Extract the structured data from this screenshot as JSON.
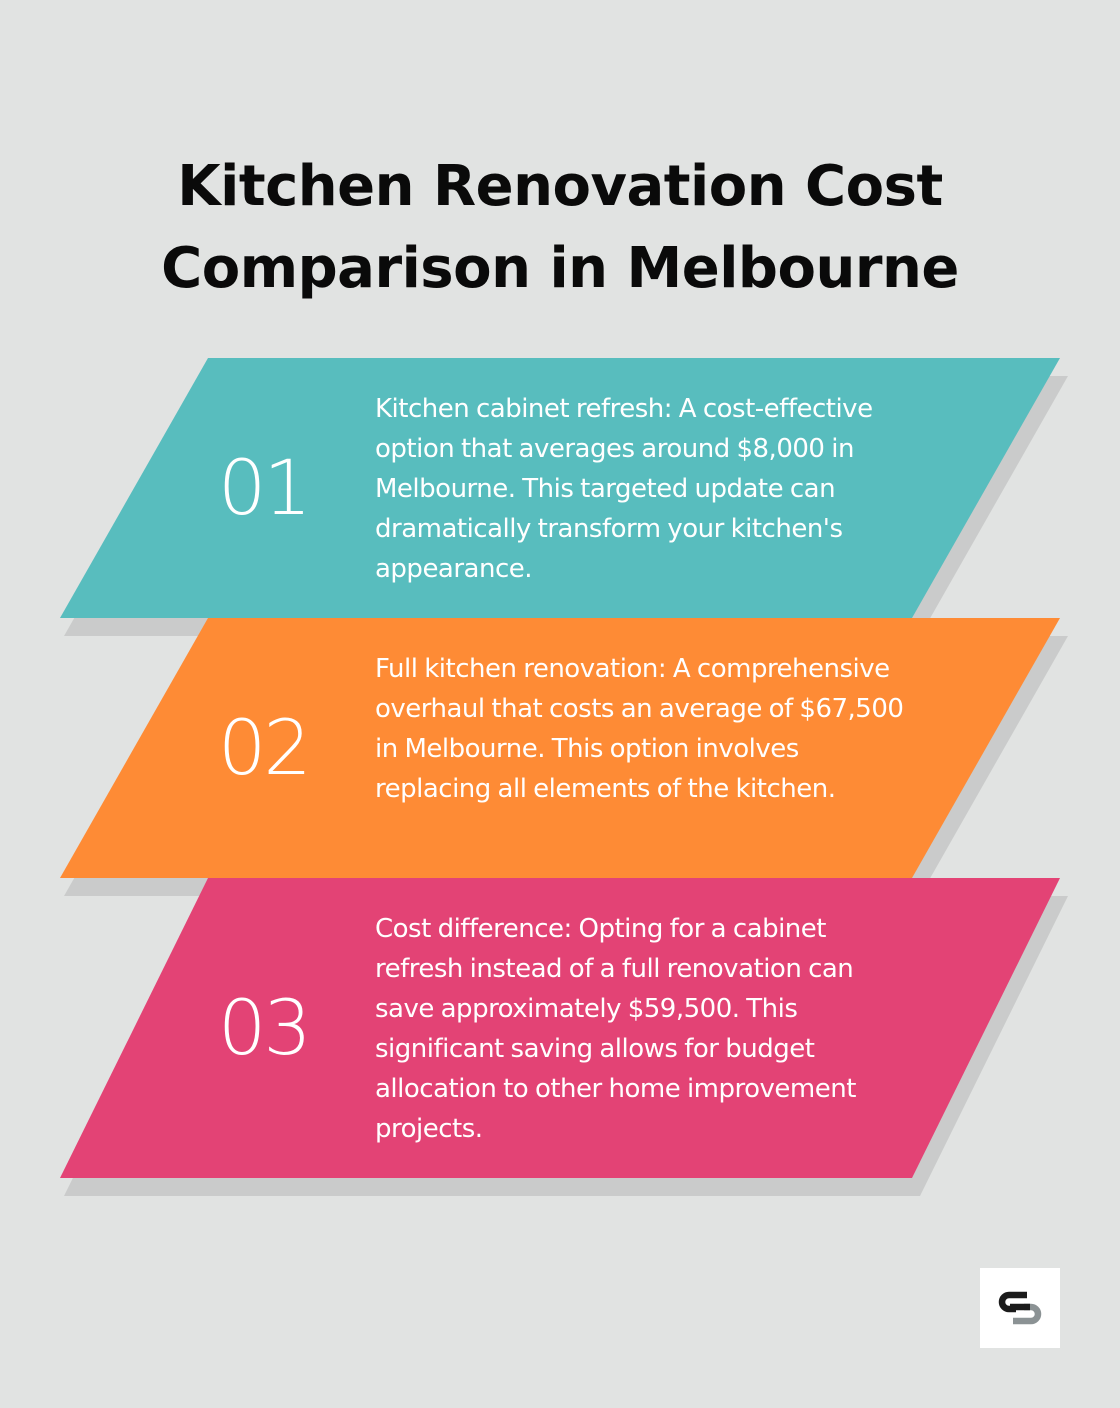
{
  "title": {
    "line1": "Kitchen Renovation Cost",
    "line2": "Comparison in Melbourne"
  },
  "items": [
    {
      "number": "01",
      "color": "#58bdbe",
      "text": "Kitchen cabinet refresh: A cost-effective option that averages around $8,000 in Melbourne. This targeted update can dramatically transform your kitchen's appearance."
    },
    {
      "number": "02",
      "color": "#fe8b35",
      "text": "Full kitchen renovation: A comprehensive overhaul that costs an average of $67,500 in Melbourne. This option involves replacing all elements of the kitchen."
    },
    {
      "number": "03",
      "color": "#e34375",
      "text": "Cost difference: Opting for a cabinet refresh instead of a full renovation can save approximately $59,500. This significant saving allows for budget allocation to other home improvement projects."
    }
  ],
  "background_color": "#e1e3e2",
  "logo_icon": "brand-logo-icon"
}
